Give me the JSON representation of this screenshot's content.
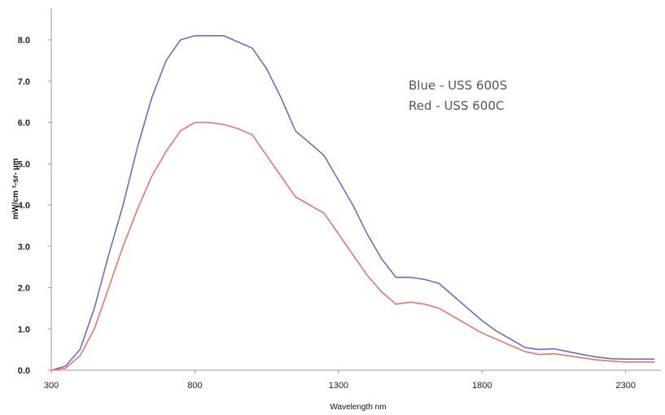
{
  "chart_data": {
    "type": "line",
    "title": "",
    "xlabel": "Wavelength nm",
    "ylabel": "mW/cm  ²-sr- µm",
    "xlim": [
      300,
      2400
    ],
    "ylim": [
      0,
      8.5
    ],
    "xticks": [
      300,
      800,
      1300,
      1800,
      2300
    ],
    "yticks": [
      0.0,
      1.0,
      2.0,
      3.0,
      4.0,
      5.0,
      6.0,
      7.0,
      8.0
    ],
    "xtick_labels": [
      "300",
      "800",
      "1300",
      "1800",
      "2300"
    ],
    "ytick_labels": [
      "0.0",
      "1.0",
      "2.0",
      "3.0",
      "4.0",
      "5.0",
      "6.0",
      "7.0",
      "8.0"
    ],
    "grid": false,
    "annotations": [
      "Blue - USS 600S",
      "Red - USS 600C"
    ],
    "series": [
      {
        "color": "#6b6bc8",
        "x": [
          300,
          350,
          400,
          450,
          500,
          550,
          600,
          650,
          700,
          750,
          800,
          850,
          900,
          950,
          1000,
          1050,
          1100,
          1150,
          1200,
          1250,
          1300,
          1350,
          1400,
          1450,
          1500,
          1550,
          1600,
          1650,
          1700,
          1750,
          1800,
          1850,
          1900,
          1950,
          2000,
          2050,
          2100,
          2150,
          2200,
          2250,
          2300,
          2350,
          2400
        ],
        "y": [
          0.0,
          0.1,
          0.5,
          1.5,
          2.8,
          4.0,
          5.4,
          6.6,
          7.5,
          8.0,
          8.1,
          8.1,
          8.1,
          7.95,
          7.8,
          7.3,
          6.6,
          5.8,
          5.5,
          5.2,
          4.6,
          4.0,
          3.3,
          2.7,
          2.25,
          2.25,
          2.2,
          2.1,
          1.8,
          1.5,
          1.2,
          0.95,
          0.75,
          0.55,
          0.5,
          0.52,
          0.45,
          0.38,
          0.32,
          0.28,
          0.27,
          0.27,
          0.27
        ]
      },
      {
        "color": "#e8736b",
        "x": [
          300,
          350,
          400,
          450,
          500,
          550,
          600,
          650,
          700,
          750,
          800,
          850,
          900,
          950,
          1000,
          1050,
          1100,
          1150,
          1200,
          1250,
          1300,
          1350,
          1400,
          1450,
          1500,
          1550,
          1600,
          1650,
          1700,
          1750,
          1800,
          1850,
          1900,
          1950,
          2000,
          2050,
          2100,
          2150,
          2200,
          2250,
          2300,
          2350,
          2400
        ],
        "y": [
          0.0,
          0.05,
          0.35,
          1.0,
          2.0,
          3.0,
          3.9,
          4.7,
          5.3,
          5.8,
          6.0,
          6.0,
          5.95,
          5.85,
          5.7,
          5.2,
          4.7,
          4.2,
          4.0,
          3.8,
          3.3,
          2.8,
          2.3,
          1.9,
          1.6,
          1.65,
          1.6,
          1.5,
          1.3,
          1.1,
          0.9,
          0.75,
          0.6,
          0.45,
          0.38,
          0.4,
          0.35,
          0.3,
          0.25,
          0.22,
          0.2,
          0.2,
          0.2
        ]
      }
    ]
  }
}
